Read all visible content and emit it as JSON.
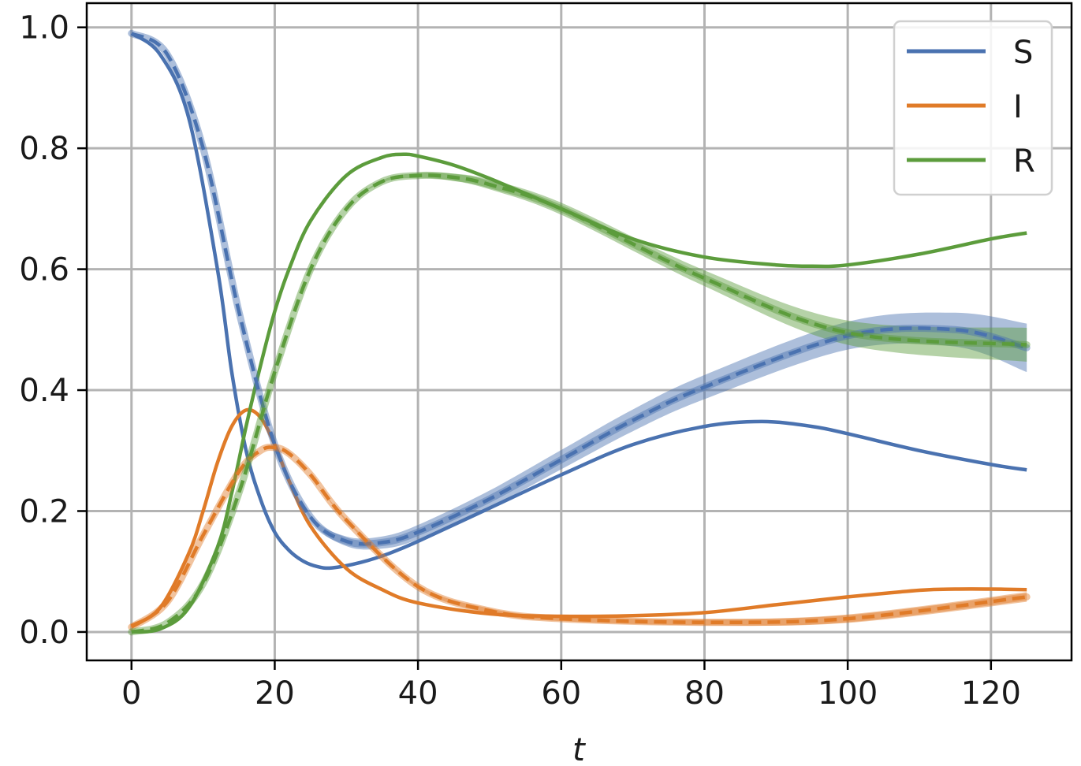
{
  "chart_data": {
    "type": "line",
    "title": "",
    "xlabel": "t",
    "ylabel": "",
    "xlim": [
      -6.25,
      131.25
    ],
    "ylim": [
      -0.047,
      1.04
    ],
    "xticks": [
      0,
      20,
      40,
      60,
      80,
      100,
      120
    ],
    "yticks": [
      0.0,
      0.2,
      0.4,
      0.6,
      0.8,
      1.0
    ],
    "xtick_labels": [
      "0",
      "20",
      "40",
      "60",
      "80",
      "100",
      "120"
    ],
    "ytick_labels": [
      "0.0",
      "0.2",
      "0.4",
      "0.6",
      "0.8",
      "1.0"
    ],
    "grid": true,
    "legend_position": "top-right",
    "legend": [
      "S",
      "I",
      "R"
    ],
    "series": [
      {
        "name": "S",
        "style": "solid",
        "color": "#4a72b0",
        "x": [
          0,
          4,
          8,
          12,
          14,
          16,
          18,
          20,
          22,
          24,
          26,
          28,
          32,
          36,
          40,
          50,
          60,
          70,
          80,
          88,
          95,
          100,
          110,
          120,
          125
        ],
        "y": [
          0.99,
          0.955,
          0.85,
          0.6,
          0.43,
          0.3,
          0.22,
          0.165,
          0.135,
          0.117,
          0.108,
          0.106,
          0.115,
          0.13,
          0.15,
          0.205,
          0.26,
          0.31,
          0.34,
          0.348,
          0.34,
          0.328,
          0.3,
          0.277,
          0.268
        ]
      },
      {
        "name": "I",
        "style": "solid",
        "color": "#e07b28",
        "x": [
          0,
          4,
          8,
          10,
          12,
          14,
          16,
          18,
          20,
          22,
          25,
          30,
          35,
          40,
          50,
          60,
          70,
          80,
          90,
          100,
          110,
          115,
          120,
          125
        ],
        "y": [
          0.01,
          0.04,
          0.13,
          0.2,
          0.28,
          0.34,
          0.367,
          0.355,
          0.31,
          0.25,
          0.175,
          0.105,
          0.07,
          0.048,
          0.03,
          0.026,
          0.027,
          0.032,
          0.045,
          0.058,
          0.069,
          0.071,
          0.071,
          0.07
        ]
      },
      {
        "name": "R",
        "style": "solid",
        "color": "#5c9c3c",
        "x": [
          0,
          4,
          8,
          12,
          14,
          16,
          18,
          20,
          22,
          25,
          30,
          35,
          38,
          40,
          45,
          50,
          60,
          70,
          80,
          90,
          95,
          100,
          110,
          120,
          125
        ],
        "y": [
          0.0,
          0.005,
          0.04,
          0.14,
          0.23,
          0.34,
          0.44,
          0.53,
          0.6,
          0.68,
          0.755,
          0.785,
          0.79,
          0.787,
          0.772,
          0.75,
          0.7,
          0.65,
          0.62,
          0.607,
          0.605,
          0.607,
          0.625,
          0.65,
          0.66
        ]
      },
      {
        "name": "",
        "style": "dashed",
        "color": "#4a72b0",
        "band": [
          0.0,
          0.0,
          0.0,
          0.0,
          0.0,
          0.004,
          0.008,
          0.01,
          0.012,
          0.014,
          0.016,
          0.018,
          0.02,
          0.023,
          0.028,
          0.04
        ],
        "x": [
          0,
          5,
          10,
          15,
          20,
          25,
          30,
          35,
          40,
          50,
          60,
          70,
          80,
          100,
          115,
          125
        ],
        "y": [
          0.99,
          0.955,
          0.8,
          0.53,
          0.31,
          0.19,
          0.15,
          0.148,
          0.165,
          0.22,
          0.285,
          0.35,
          0.405,
          0.49,
          0.5,
          0.47
        ]
      },
      {
        "name": "",
        "style": "dashed",
        "color": "#e07b28",
        "band": [
          0.0,
          0.0,
          0.0,
          0.0,
          0.0,
          0.0,
          0.0,
          0.0,
          0.002,
          0.003,
          0.004,
          0.004,
          0.005,
          0.007,
          0.008
        ],
        "x": [
          0,
          5,
          10,
          15,
          18,
          20,
          22,
          25,
          30,
          40,
          50,
          60,
          80,
          100,
          125
        ],
        "y": [
          0.008,
          0.05,
          0.16,
          0.265,
          0.3,
          0.305,
          0.295,
          0.26,
          0.185,
          0.075,
          0.035,
          0.022,
          0.016,
          0.022,
          0.058
        ]
      },
      {
        "name": "",
        "style": "dashed",
        "color": "#5c9c3c",
        "band": [
          0.0,
          0.0,
          0.0,
          0.0,
          0.0,
          0.0,
          0.0,
          0.002,
          0.004,
          0.006,
          0.008,
          0.01,
          0.013,
          0.02,
          0.028
        ],
        "x": [
          0,
          5,
          10,
          15,
          20,
          25,
          30,
          35,
          40,
          45,
          50,
          60,
          80,
          100,
          125
        ],
        "y": [
          0.0,
          0.015,
          0.08,
          0.23,
          0.43,
          0.6,
          0.7,
          0.745,
          0.755,
          0.752,
          0.74,
          0.7,
          0.585,
          0.495,
          0.475
        ]
      }
    ]
  }
}
